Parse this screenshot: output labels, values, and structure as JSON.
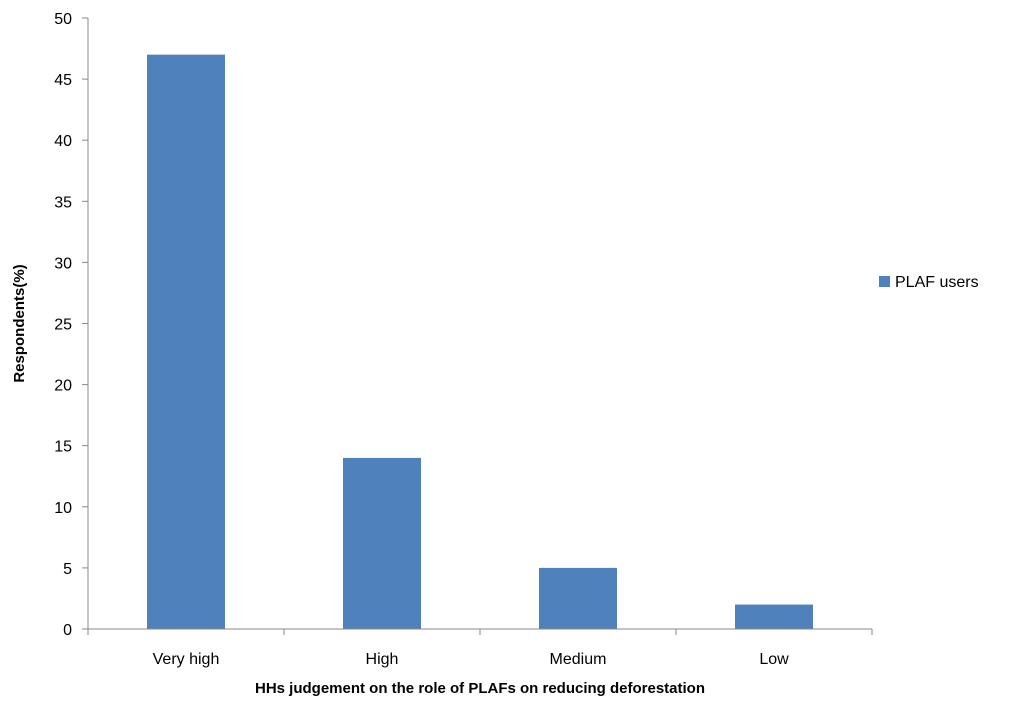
{
  "chart_data": {
    "type": "bar",
    "categories": [
      "Very high",
      "High",
      "Medium",
      "Low"
    ],
    "series": [
      {
        "name": "PLAF users",
        "values": [
          47,
          14,
          5,
          2
        ],
        "color": "#4F81BD"
      }
    ],
    "xlabel": "HHs judgement on the role of PLAFs on reducing deforestation",
    "ylabel": "Respondents(%)",
    "ylim": [
      0,
      50
    ],
    "yticks": [
      0,
      5,
      10,
      15,
      20,
      25,
      30,
      35,
      40,
      45,
      50
    ],
    "grid": false,
    "legend": "right"
  }
}
